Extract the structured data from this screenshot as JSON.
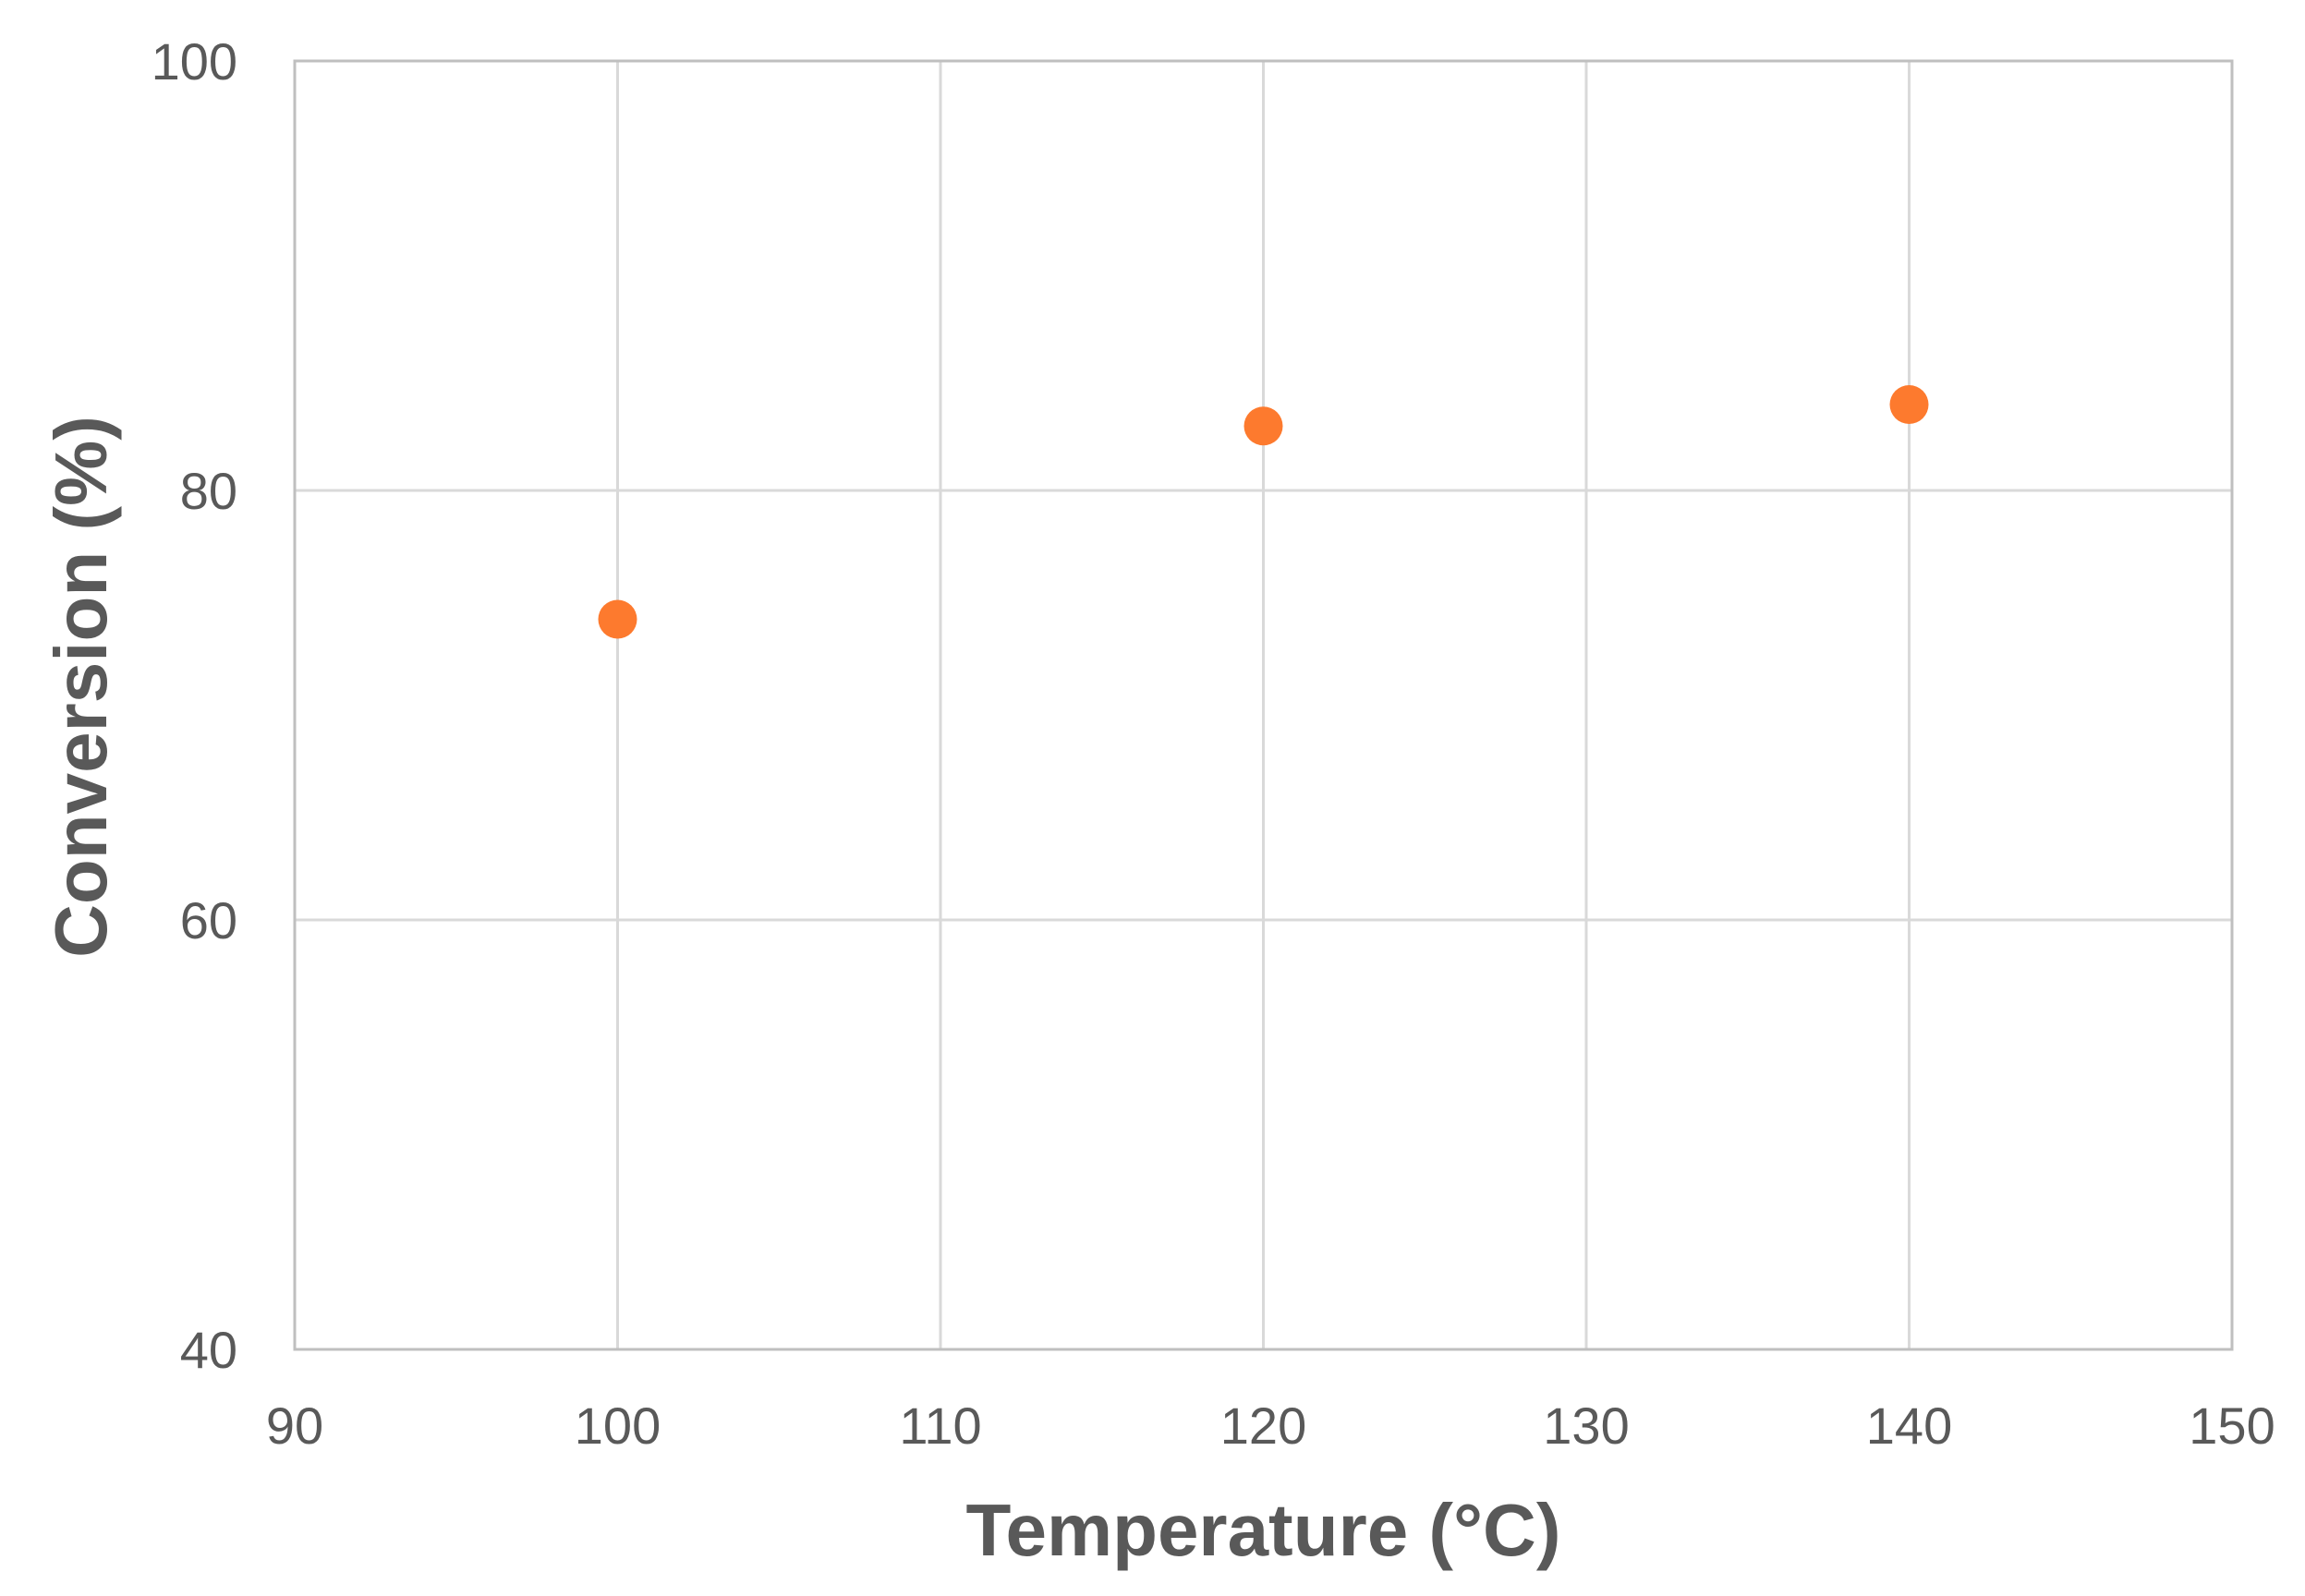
{
  "chart_data": {
    "type": "scatter",
    "title": "",
    "xlabel": "Temperature (°C)",
    "ylabel": "Conversion (%)",
    "xlim": [
      90,
      150
    ],
    "ylim": [
      40,
      100
    ],
    "x_ticks": [
      90,
      100,
      110,
      120,
      130,
      140,
      150
    ],
    "y_ticks": [
      40,
      60,
      80,
      100
    ],
    "grid": true,
    "legend": "none",
    "series": [
      {
        "color": "#fd7a2e",
        "x": [
          100,
          120,
          140
        ],
        "y": [
          74,
          83,
          84
        ]
      }
    ]
  }
}
